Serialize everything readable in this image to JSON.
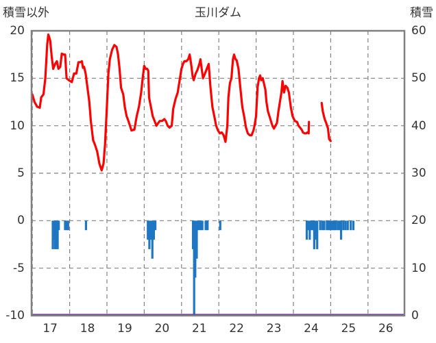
{
  "chart_data": {
    "type": "line",
    "title": "玉川ダム",
    "left_axis_label": "積雪以外",
    "right_axis_label": "積雪",
    "left_ylim": [
      -10,
      20
    ],
    "left_ticks": [
      20,
      15,
      10,
      5,
      0,
      -5,
      -10
    ],
    "right_ylim": [
      0,
      60
    ],
    "right_ticks": [
      60,
      50,
      40,
      30,
      20,
      10,
      0
    ],
    "xlim": [
      16.5,
      26.5
    ],
    "x_ticks": [
      17,
      18,
      19,
      20,
      21,
      22,
      23,
      24,
      25,
      26
    ],
    "x_tick_labels": [
      "17",
      "18",
      "19",
      "20",
      "21",
      "22",
      "23",
      "24",
      "25",
      "26"
    ],
    "grid": true,
    "colors": {
      "temperature": "#ff0000",
      "precipitation": "#1f77c2",
      "snow": "#7030a0",
      "frame": "#808080"
    },
    "series": [
      {
        "type": "line",
        "axis": "left",
        "color": "#ff0000",
        "segments": [
          [
            [
              16.52,
              13.3
            ],
            [
              16.58,
              12.5
            ],
            [
              16.65,
              12.0
            ],
            [
              16.72,
              11.9
            ],
            [
              16.76,
              13.0
            ],
            [
              16.82,
              13.3
            ],
            [
              16.87,
              15.0
            ],
            [
              16.92,
              18.5
            ],
            [
              16.95,
              19.6
            ],
            [
              17.0,
              19.0
            ],
            [
              17.04,
              17.3
            ],
            [
              17.08,
              16.0
            ],
            [
              17.13,
              16.5
            ],
            [
              17.18,
              16.8
            ],
            [
              17.22,
              16.0
            ],
            [
              17.27,
              16.2
            ],
            [
              17.31,
              17.6
            ],
            [
              17.36,
              17.5
            ],
            [
              17.4,
              17.5
            ],
            [
              17.44,
              15.0
            ],
            [
              17.5,
              14.8
            ],
            [
              17.58,
              14.6
            ],
            [
              17.64,
              15.5
            ],
            [
              17.7,
              15.5
            ],
            [
              17.76,
              16.7
            ],
            [
              17.82,
              16.7
            ],
            [
              17.85,
              16.8
            ],
            [
              17.88,
              16.1
            ],
            [
              17.91,
              16.2
            ],
            [
              17.95,
              15.5
            ],
            [
              18.0,
              14.0
            ],
            [
              18.05,
              12.5
            ],
            [
              18.09,
              10.5
            ],
            [
              18.15,
              8.5
            ],
            [
              18.2,
              8.0
            ],
            [
              18.26,
              7.3
            ],
            [
              18.32,
              6.0
            ],
            [
              18.38,
              5.3
            ],
            [
              18.43,
              6.0
            ],
            [
              18.47,
              8.0
            ],
            [
              18.52,
              12.0
            ],
            [
              18.56,
              15.5
            ],
            [
              18.6,
              17.0
            ],
            [
              18.66,
              18.0
            ],
            [
              18.72,
              18.5
            ],
            [
              18.78,
              18.3
            ],
            [
              18.82,
              17.5
            ],
            [
              18.86,
              16.0
            ],
            [
              18.9,
              14.0
            ],
            [
              18.96,
              13.3
            ],
            [
              19.0,
              12.0
            ],
            [
              19.05,
              11.0
            ],
            [
              19.08,
              10.7
            ],
            [
              19.14,
              10.0
            ],
            [
              19.18,
              9.5
            ],
            [
              19.26,
              9.6
            ],
            [
              19.32,
              11.0
            ],
            [
              19.38,
              12.0
            ],
            [
              19.44,
              13.5
            ],
            [
              19.48,
              15.0
            ],
            [
              19.52,
              16.3
            ],
            [
              19.56,
              16.0
            ],
            [
              19.6,
              16.0
            ],
            [
              19.63,
              15.8
            ],
            [
              19.65,
              13.0
            ],
            [
              19.7,
              12.0
            ],
            [
              19.75,
              11.0
            ],
            [
              19.8,
              10.5
            ],
            [
              19.85,
              10.0
            ],
            [
              19.88,
              10.2
            ],
            [
              19.94,
              10.5
            ],
            [
              20.0,
              10.5
            ],
            [
              20.06,
              10.7
            ],
            [
              20.1,
              10.5
            ],
            [
              20.15,
              10.0
            ],
            [
              20.2,
              9.8
            ],
            [
              20.26,
              10.0
            ],
            [
              20.3,
              11.8
            ],
            [
              20.36,
              12.8
            ],
            [
              20.42,
              13.5
            ],
            [
              20.48,
              15.0
            ],
            [
              20.52,
              16.0
            ],
            [
              20.56,
              16.5
            ],
            [
              20.6,
              16.8
            ],
            [
              20.65,
              16.8
            ],
            [
              20.7,
              17.0
            ],
            [
              20.74,
              17.5
            ],
            [
              20.78,
              16.5
            ],
            [
              20.82,
              15.2
            ],
            [
              20.85,
              14.8
            ],
            [
              20.9,
              15.5
            ],
            [
              20.95,
              15.9
            ],
            [
              21.0,
              16.5
            ],
            [
              21.03,
              17.0
            ],
            [
              21.07,
              15.8
            ],
            [
              21.1,
              15.0
            ],
            [
              21.15,
              15.5
            ],
            [
              21.2,
              16.0
            ],
            [
              21.25,
              16.5
            ],
            [
              21.3,
              14.0
            ],
            [
              21.35,
              12.0
            ],
            [
              21.4,
              11.0
            ],
            [
              21.45,
              10.0
            ],
            [
              21.5,
              9.5
            ],
            [
              21.55,
              9.2
            ],
            [
              21.6,
              9.3
            ],
            [
              21.65,
              9.0
            ],
            [
              21.7,
              8.3
            ],
            [
              21.75,
              10.0
            ],
            [
              21.78,
              13.0
            ],
            [
              21.82,
              14.5
            ],
            [
              21.86,
              15.0
            ],
            [
              21.9,
              17.0
            ],
            [
              21.93,
              17.5
            ],
            [
              21.97,
              17.0
            ],
            [
              22.0,
              16.9
            ],
            [
              22.05,
              16.0
            ],
            [
              22.1,
              14.0
            ],
            [
              22.15,
              12.0
            ],
            [
              22.2,
              11.0
            ],
            [
              22.25,
              9.8
            ],
            [
              22.3,
              9.2
            ],
            [
              22.35,
              9.0
            ],
            [
              22.4,
              9.0
            ],
            [
              22.45,
              9.5
            ],
            [
              22.48,
              10.0
            ],
            [
              22.52,
              11.0
            ],
            [
              22.56,
              14.0
            ],
            [
              22.6,
              15.0
            ],
            [
              22.63,
              15.3
            ],
            [
              22.66,
              14.8
            ],
            [
              22.7,
              15.0
            ],
            [
              22.74,
              14.3
            ],
            [
              22.77,
              13.8
            ],
            [
              22.8,
              12.5
            ],
            [
              22.84,
              11.5
            ],
            [
              22.88,
              11.0
            ],
            [
              22.92,
              10.5
            ],
            [
              22.96,
              10.0
            ],
            [
              23.0,
              9.7
            ],
            [
              23.04,
              10.0
            ],
            [
              23.08,
              10.3
            ],
            [
              23.12,
              11.5
            ],
            [
              23.16,
              12.5
            ],
            [
              23.2,
              13.5
            ],
            [
              23.23,
              14.7
            ],
            [
              23.27,
              13.5
            ],
            [
              23.31,
              14.2
            ],
            [
              23.36,
              14.0
            ],
            [
              23.4,
              13.5
            ],
            [
              23.45,
              12.0
            ],
            [
              23.5,
              11.0
            ],
            [
              23.56,
              10.5
            ],
            [
              23.62,
              10.4
            ],
            [
              23.66,
              10.0
            ],
            [
              23.7,
              9.8
            ],
            [
              23.74,
              9.6
            ],
            [
              23.78,
              9.3
            ],
            [
              23.82,
              9.2
            ],
            [
              23.86,
              9.2
            ],
            [
              23.9,
              9.3
            ],
            [
              23.93,
              9.2
            ],
            [
              23.94,
              10.4
            ]
          ],
          [
            [
              24.28,
              12.4
            ],
            [
              24.31,
              11.5
            ],
            [
              24.36,
              10.7
            ],
            [
              24.4,
              10.3
            ],
            [
              24.45,
              9.7
            ],
            [
              24.48,
              8.6
            ],
            [
              24.52,
              8.4
            ]
          ]
        ]
      },
      {
        "type": "bar",
        "axis": "left",
        "color": "#1f77c2",
        "bars": [
          [
            17.07,
            -3
          ],
          [
            17.1,
            -2
          ],
          [
            17.13,
            -3
          ],
          [
            17.16,
            -3
          ],
          [
            17.2,
            -3
          ],
          [
            17.23,
            -1
          ],
          [
            17.4,
            -1
          ],
          [
            17.45,
            -1
          ],
          [
            17.48,
            -1
          ],
          [
            17.96,
            -1
          ],
          [
            19.62,
            -2
          ],
          [
            19.66,
            -3
          ],
          [
            19.7,
            -2
          ],
          [
            19.74,
            -4
          ],
          [
            19.78,
            -2
          ],
          [
            19.82,
            -1
          ],
          [
            20.83,
            -3
          ],
          [
            20.86,
            -10
          ],
          [
            20.89,
            -6
          ],
          [
            20.93,
            -4
          ],
          [
            20.98,
            -1
          ],
          [
            21.03,
            -1
          ],
          [
            21.08,
            -1
          ],
          [
            21.17,
            -1
          ],
          [
            21.22,
            -1
          ],
          [
            21.56,
            -1
          ],
          [
            23.88,
            -2
          ],
          [
            23.92,
            -1
          ],
          [
            23.96,
            -2
          ],
          [
            24.0,
            -1
          ],
          [
            24.04,
            -1
          ],
          [
            24.08,
            -3
          ],
          [
            24.12,
            -2
          ],
          [
            24.16,
            -3
          ],
          [
            24.24,
            -1
          ],
          [
            24.3,
            -1
          ],
          [
            24.35,
            -1
          ],
          [
            24.42,
            -1
          ],
          [
            24.46,
            -1
          ],
          [
            24.5,
            -1
          ],
          [
            24.54,
            -1
          ],
          [
            24.58,
            -1
          ],
          [
            24.62,
            -1
          ],
          [
            24.66,
            -1
          ],
          [
            24.72,
            -1
          ],
          [
            24.76,
            -1
          ],
          [
            24.8,
            -2
          ],
          [
            24.86,
            -1
          ],
          [
            24.92,
            -1
          ],
          [
            24.98,
            -1
          ],
          [
            25.06,
            -1
          ],
          [
            25.13,
            -1
          ]
        ]
      },
      {
        "type": "line",
        "axis": "right",
        "color": "#7030a0",
        "points": [
          [
            16.5,
            0
          ],
          [
            26.5,
            0
          ]
        ]
      }
    ]
  }
}
